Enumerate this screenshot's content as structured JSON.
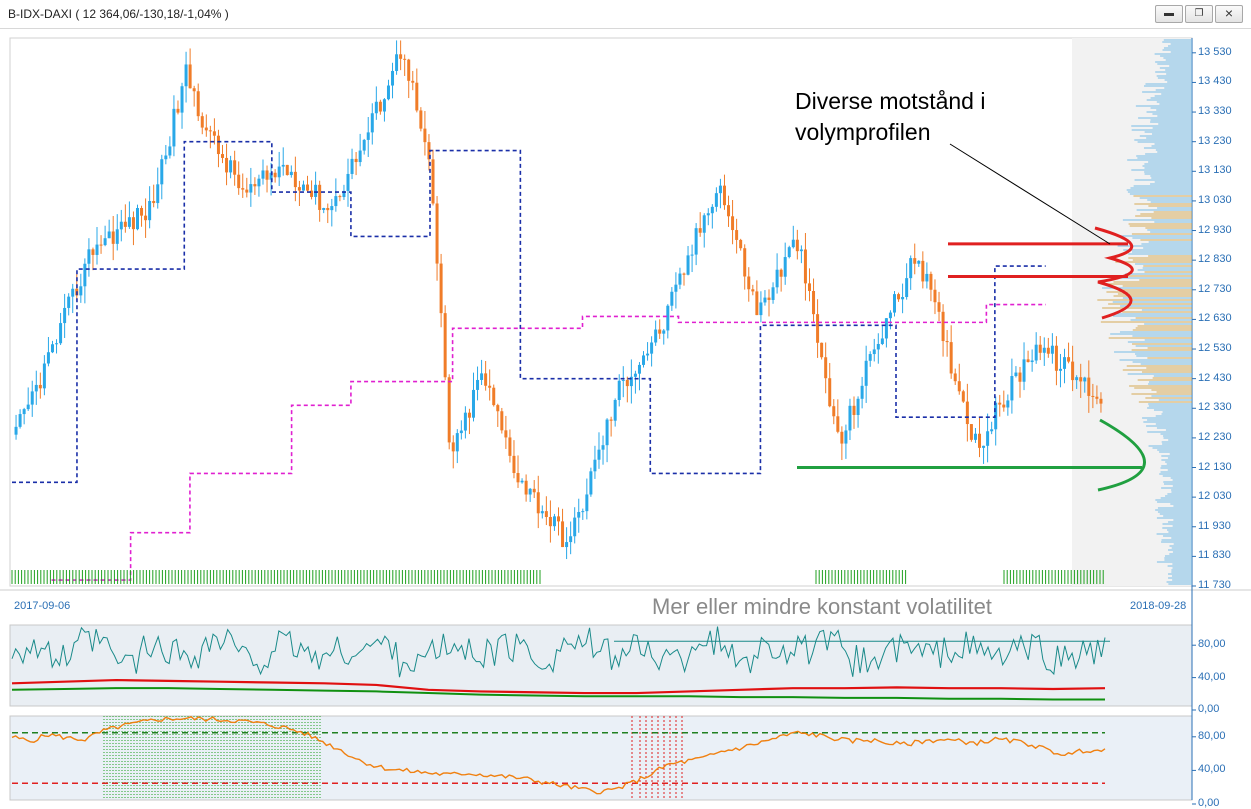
{
  "window": {
    "title": "B-IDX-DAXI ( 12 364,06/-130,18/-1,04% )",
    "buttons": [
      "minimize",
      "restore",
      "close"
    ]
  },
  "colors": {
    "bull_candle": "#29a8e8",
    "bear_candle": "#f07c28",
    "resistance_band": "#e02020",
    "support_band": "#20a040",
    "donchian_blue": "#1a2fa8",
    "magenta_line": "#e020d0",
    "volatility_line": "#1a8a8a",
    "oscillator_line": "#f08010",
    "axis_text": "#2a6fb5"
  },
  "dates": {
    "start": "2017-09-06",
    "end": "2018-09-28"
  },
  "annotations": {
    "volume_profile_note": [
      "Diverse motstånd i",
      "volymprofilen"
    ],
    "volatility_note": "Mer eller mindre konstant volatilitet"
  },
  "chart_data": [
    {
      "type": "candlestick",
      "title": "B-IDX-DAXI ( 12 364,06/-130,18/-1,04% )",
      "x_range": [
        "2017-09-06",
        "2018-09-28"
      ],
      "ylim": [
        11730,
        13580
      ],
      "y_ticks": [
        "13 530",
        "13 430",
        "13 330",
        "13 230",
        "13 130",
        "13 030",
        "12 930",
        "12 830",
        "12 730",
        "12 630",
        "12 530",
        "12 430",
        "12 330",
        "12 230",
        "12 130",
        "12 030",
        "11 930",
        "11 830",
        "11 730"
      ],
      "close_anchors": [
        {
          "date": "2017-09-06",
          "close": 12210
        },
        {
          "date": "2017-09-20",
          "close": 12520
        },
        {
          "date": "2017-10-05",
          "close": 12880
        },
        {
          "date": "2017-10-25",
          "close": 13000
        },
        {
          "date": "2017-11-07",
          "close": 13460
        },
        {
          "date": "2017-11-15",
          "close": 13250
        },
        {
          "date": "2017-11-28",
          "close": 13050
        },
        {
          "date": "2017-12-12",
          "close": 13150
        },
        {
          "date": "2017-12-28",
          "close": 13000
        },
        {
          "date": "2018-01-10",
          "close": 13250
        },
        {
          "date": "2018-01-23",
          "close": 13560
        },
        {
          "date": "2018-02-02",
          "close": 13100
        },
        {
          "date": "2018-02-09",
          "close": 12150
        },
        {
          "date": "2018-02-20",
          "close": 12450
        },
        {
          "date": "2018-03-05",
          "close": 12100
        },
        {
          "date": "2018-03-23",
          "close": 11870
        },
        {
          "date": "2018-04-10",
          "close": 12400
        },
        {
          "date": "2018-04-25",
          "close": 12600
        },
        {
          "date": "2018-05-15",
          "close": 13100
        },
        {
          "date": "2018-05-29",
          "close": 12650
        },
        {
          "date": "2018-06-12",
          "close": 12900
        },
        {
          "date": "2018-06-27",
          "close": 12200
        },
        {
          "date": "2018-07-10",
          "close": 12550
        },
        {
          "date": "2018-07-25",
          "close": 12850
        },
        {
          "date": "2018-08-15",
          "close": 12200
        },
        {
          "date": "2018-09-05",
          "close": 12550
        },
        {
          "date": "2018-09-28",
          "close": 12364
        }
      ],
      "donchian_levels": [
        {
          "from": "2017-09-06",
          "to": "2017-09-29",
          "value": 12080
        },
        {
          "from": "2017-09-29",
          "to": "2017-11-06",
          "value": 12800
        },
        {
          "from": "2017-11-06",
          "to": "2017-12-07",
          "value": 13230
        },
        {
          "from": "2017-12-07",
          "to": "2018-01-04",
          "value": 13060
        },
        {
          "from": "2018-01-04",
          "to": "2018-02-01",
          "value": 12910
        },
        {
          "from": "2018-02-01",
          "to": "2018-03-05",
          "value": 13200
        },
        {
          "from": "2018-03-05",
          "to": "2018-04-20",
          "value": 12430
        },
        {
          "from": "2018-04-20",
          "to": "2018-05-29",
          "value": 12110
        },
        {
          "from": "2018-05-29",
          "to": "2018-07-16",
          "value": 12610
        },
        {
          "from": "2018-07-16",
          "to": "2018-08-20",
          "value": 12300
        },
        {
          "from": "2018-08-20",
          "to": "2018-09-07",
          "value": 12810
        }
      ],
      "magenta_levels": [
        {
          "from": "2017-09-20",
          "to": "2017-10-18",
          "value": 11750
        },
        {
          "from": "2017-10-18",
          "to": "2017-11-08",
          "value": 11910
        },
        {
          "from": "2017-11-08",
          "to": "2017-12-14",
          "value": 12110
        },
        {
          "from": "2017-12-14",
          "to": "2018-01-04",
          "value": 12340
        },
        {
          "from": "2018-01-04",
          "to": "2018-02-09",
          "value": 12420
        },
        {
          "from": "2018-02-09",
          "to": "2018-03-27",
          "value": 12600
        },
        {
          "from": "2018-03-27",
          "to": "2018-04-30",
          "value": 12640
        },
        {
          "from": "2018-04-30",
          "to": "2018-07-18",
          "value": 12620
        },
        {
          "from": "2018-07-18",
          "to": "2018-08-17",
          "value": 12620
        },
        {
          "from": "2018-08-17",
          "to": "2018-09-07",
          "value": 12680
        }
      ],
      "resistance_levels": [
        12885,
        12775
      ],
      "support_level": 12130
    },
    {
      "type": "line",
      "title": "",
      "ylim": [
        0,
        100
      ],
      "y_ticks": [
        "80,00",
        "40,00",
        "0,00"
      ],
      "series": [
        {
          "values": [
            72,
            60,
            78,
            55,
            70,
            65,
            80,
            58,
            74,
            62,
            68,
            75,
            55,
            70,
            66,
            72,
            60,
            78,
            64,
            70,
            58,
            82,
            60,
            72,
            68,
            74,
            56,
            70,
            65,
            72,
            62,
            70,
            58,
            68
          ]
        },
        {
          "values": [
            28,
            30,
            32,
            31,
            30,
            29,
            28,
            26,
            20,
            18,
            17,
            16,
            16,
            18,
            20,
            22,
            22,
            23,
            22,
            22,
            21,
            22
          ]
        },
        {
          "values": [
            20,
            21,
            22,
            22,
            21,
            20,
            19,
            18,
            16,
            14,
            13,
            12,
            12,
            12,
            11,
            11,
            10,
            10,
            9,
            9,
            8,
            8
          ]
        }
      ],
      "reference_line": 80
    },
    {
      "type": "line",
      "title": "",
      "ylim": [
        0,
        100
      ],
      "y_ticks": [
        "80,00",
        "40,00",
        "0,00"
      ],
      "series": [
        {
          "values": [
            75,
            70,
            78,
            74,
            72,
            82,
            88,
            92,
            96,
            97,
            97,
            96,
            95,
            93,
            90,
            86,
            80,
            70,
            60,
            48,
            40,
            36,
            34,
            32,
            30,
            32,
            30,
            28,
            26,
            22,
            18,
            14,
            10,
            12,
            20,
            30,
            42,
            46,
            50,
            58,
            62,
            68,
            74,
            80,
            78,
            74,
            70,
            72,
            68,
            66,
            70,
            72,
            70,
            68,
            72,
            70,
            66,
            58,
            54,
            60,
            58
          ]
        }
      ],
      "upper_band": 80,
      "lower_band": 20
    }
  ]
}
